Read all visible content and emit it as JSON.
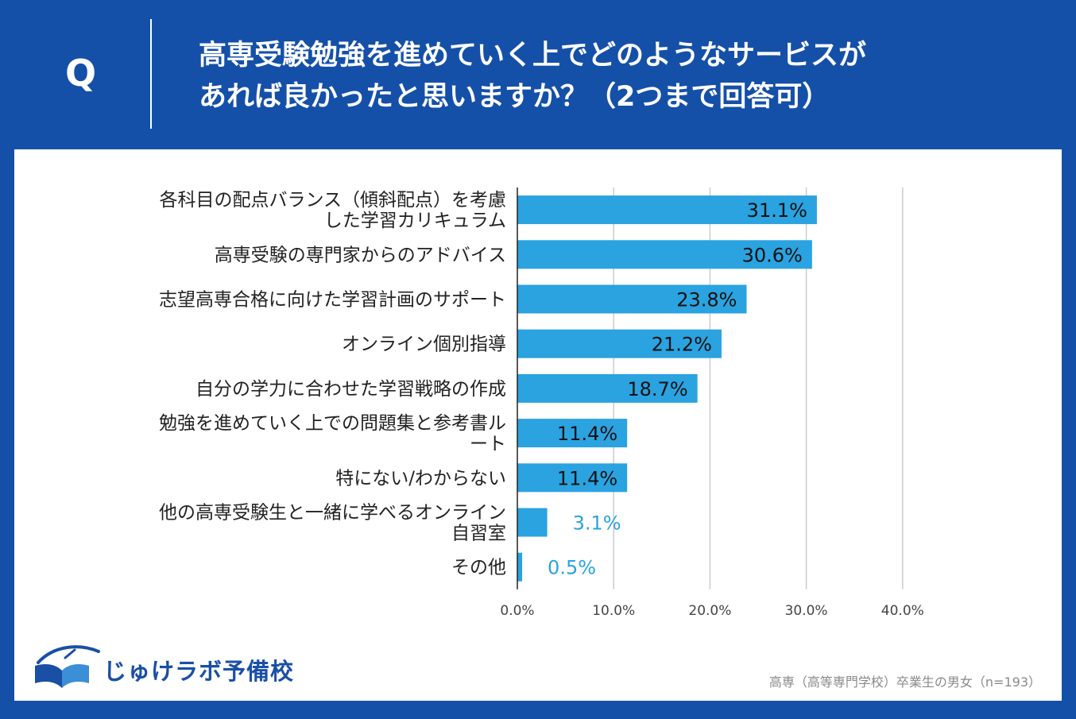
{
  "header": {
    "q_label": "Q",
    "question_lines": [
      "高専受験勉強を進めていく上でどのようなサービスが",
      "あれば良かったと思いますか？（2つまで回答可）"
    ]
  },
  "chart_data": {
    "type": "bar",
    "orientation": "horizontal",
    "categories": [
      [
        "各科目の配点バランス（傾斜配点）を考慮",
        "した学習カリキュラム"
      ],
      [
        "高専受験の専門家からのアドバイス"
      ],
      [
        "志望高専合格に向けた学習計画のサポート"
      ],
      [
        "オンライン個別指導"
      ],
      [
        "自分の学力に合わせた学習戦略の作成"
      ],
      [
        "勉強を進めていく上での問題集と参考書ル",
        "ート"
      ],
      [
        "特にない/わからない"
      ],
      [
        "他の高専受験生と一緒に学べるオンライン",
        "自習室"
      ],
      [
        "その他"
      ]
    ],
    "values": [
      31.1,
      30.6,
      23.8,
      21.2,
      18.7,
      11.4,
      11.4,
      3.1,
      0.5
    ],
    "value_labels": [
      "31.1%",
      "30.6%",
      "23.8%",
      "21.2%",
      "18.7%",
      "11.4%",
      "11.4%",
      "3.1%",
      "0.5%"
    ],
    "xlim": [
      0,
      40
    ],
    "ticks": [
      0,
      10,
      20,
      30,
      40
    ],
    "tick_labels": [
      "0.0%",
      "10.0%",
      "20.0%",
      "30.0%",
      "40.0%"
    ],
    "grid": true,
    "colors": {
      "bar": "#2aa3e0",
      "grid": "#cccccc",
      "axis": "#222222"
    }
  },
  "logo": {
    "text": "じゅけラボ予備校"
  },
  "footnote": "高専（高等専門学校）卒業生の男女（n=193）",
  "colors": {
    "background": "#1550a8",
    "panel": "#ffffff",
    "accent": "#2aa3e0",
    "logo": "#1a4fa6"
  }
}
